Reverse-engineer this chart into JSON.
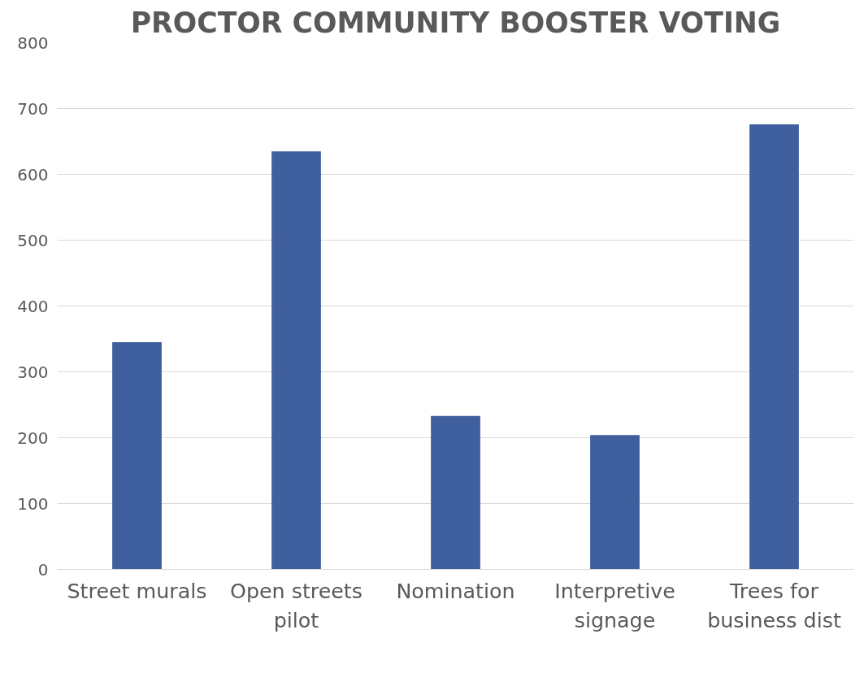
{
  "chart_data": {
    "type": "bar",
    "title": "PROCTOR COMMUNITY BOOSTER VOTING",
    "categories": [
      "Street murals",
      "Open streets pilot",
      "Nomination",
      "Interpretive signage",
      "Trees for business dist"
    ],
    "values": [
      345,
      635,
      233,
      204,
      676
    ],
    "color": "#3f5f9e",
    "ylim": [
      0,
      800
    ],
    "yticks": [
      0,
      100,
      200,
      300,
      400,
      500,
      600,
      700,
      800
    ],
    "grid": "y"
  }
}
